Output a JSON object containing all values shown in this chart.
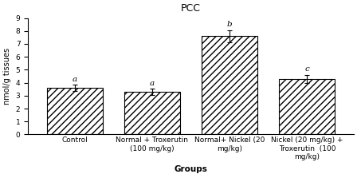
{
  "title": "PCC",
  "xlabel": "Groups",
  "ylabel": "nmol/g tissues",
  "categories": [
    "Control",
    "Normal + Troxerutin\n(100 mg/kg)",
    "Normal+ Nickel (20\nmg/kg)",
    "Nickel (20 mg/kg) +\nTroxerutin  (100\nmg/kg)"
  ],
  "values": [
    3.6,
    3.3,
    7.6,
    4.3
  ],
  "errors": [
    0.25,
    0.22,
    0.45,
    0.3
  ],
  "letters": [
    "a",
    "a",
    "b",
    "c"
  ],
  "ylim": [
    0,
    9
  ],
  "yticks": [
    0,
    1,
    2,
    3,
    4,
    5,
    6,
    7,
    8,
    9
  ],
  "bar_color": "#ffffff",
  "hatch": "////",
  "bar_width": 0.72,
  "figsize": [
    4.48,
    2.23
  ],
  "dpi": 100,
  "title_fontsize": 9,
  "axis_label_fontsize": 7.5,
  "tick_fontsize": 6.5,
  "letter_fontsize": 7.5,
  "ylabel_fontsize": 7,
  "background_color": "#ffffff"
}
